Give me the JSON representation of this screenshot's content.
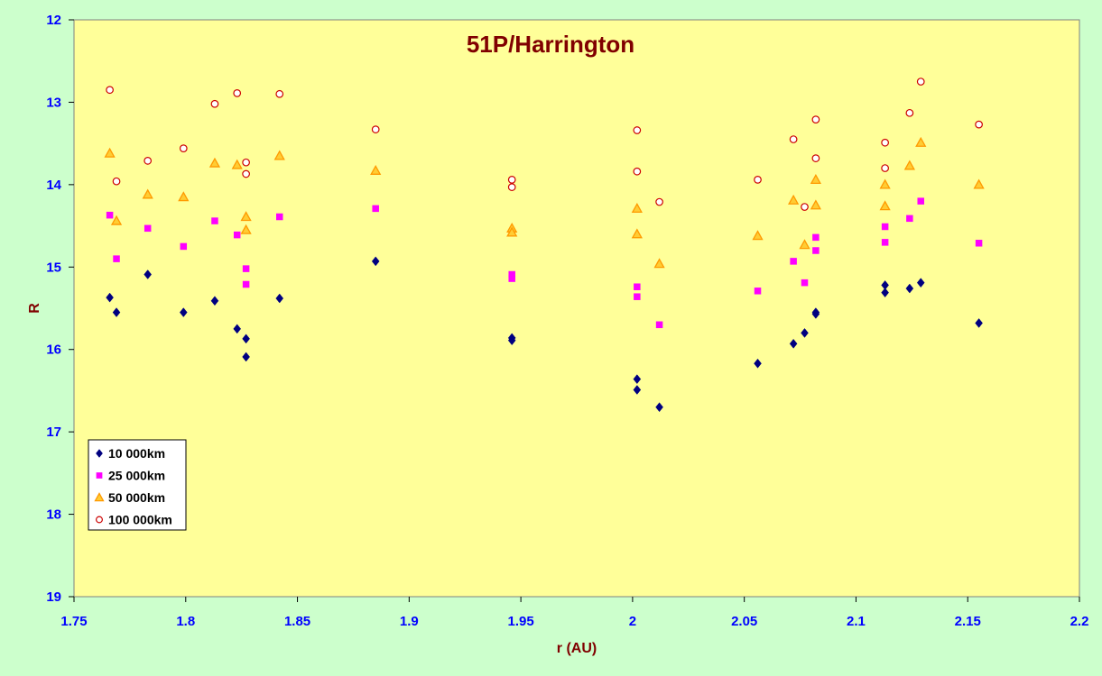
{
  "chart_data": {
    "type": "scatter",
    "title": "51P/Harrington",
    "xlabel": "r (AU)",
    "ylabel": "R",
    "xlim": [
      1.75,
      2.2
    ],
    "ylim": [
      12,
      19
    ],
    "y_reversed": true,
    "grid": false,
    "legend_position": "bottom-left",
    "x_ticks": [
      "1.75",
      "1.8",
      "1.85",
      "1.9",
      "1.95",
      "2",
      "2.05",
      "2.1",
      "2.15",
      "2.2"
    ],
    "y_ticks": [
      "12",
      "13",
      "14",
      "15",
      "16",
      "17",
      "18",
      "19"
    ],
    "colors": {
      "page_background": "#ccffcc",
      "plot_background": "#ffff99",
      "title": "#800000",
      "axis_labels": "#800000",
      "tick_labels": "#0000ff"
    },
    "series": [
      {
        "name": "10 000km",
        "marker": "diamond",
        "color": "#000080",
        "x": [
          1.766,
          1.769,
          1.783,
          1.799,
          1.813,
          1.823,
          1.827,
          1.827,
          1.842,
          1.885,
          1.946,
          1.946,
          2.002,
          2.002,
          2.012,
          2.056,
          2.072,
          2.077,
          2.082,
          2.082,
          2.113,
          2.113,
          2.124,
          2.129,
          2.155
        ],
        "y": [
          15.37,
          15.55,
          15.09,
          15.55,
          15.41,
          15.75,
          15.87,
          16.09,
          15.38,
          14.93,
          15.86,
          15.89,
          16.36,
          16.49,
          16.7,
          16.17,
          15.93,
          15.8,
          15.57,
          15.55,
          15.22,
          15.31,
          15.26,
          15.19,
          15.68
        ]
      },
      {
        "name": "25 000km",
        "marker": "square",
        "color": "#ff00ff",
        "x": [
          1.766,
          1.769,
          1.783,
          1.799,
          1.813,
          1.823,
          1.827,
          1.827,
          1.842,
          1.885,
          1.946,
          1.946,
          2.002,
          2.002,
          2.012,
          2.056,
          2.072,
          2.077,
          2.082,
          2.082,
          2.113,
          2.113,
          2.124,
          2.129,
          2.155
        ],
        "y": [
          14.37,
          14.9,
          14.53,
          14.75,
          14.44,
          14.61,
          15.02,
          15.21,
          14.39,
          14.29,
          15.09,
          15.14,
          15.24,
          15.36,
          15.7,
          15.29,
          14.93,
          15.19,
          14.64,
          14.8,
          14.51,
          14.7,
          14.41,
          14.2,
          14.71
        ]
      },
      {
        "name": "50 000km",
        "marker": "triangle",
        "color": "#ff9900",
        "x": [
          1.766,
          1.769,
          1.783,
          1.799,
          1.813,
          1.823,
          1.827,
          1.827,
          1.842,
          1.885,
          1.946,
          1.946,
          2.002,
          2.002,
          2.012,
          2.056,
          2.072,
          2.077,
          2.082,
          2.082,
          2.113,
          2.113,
          2.124,
          2.129,
          2.155
        ],
        "y": [
          13.62,
          14.44,
          14.12,
          14.15,
          13.74,
          13.76,
          14.39,
          14.55,
          13.65,
          13.83,
          14.53,
          14.58,
          14.29,
          14.6,
          14.96,
          14.62,
          14.19,
          14.73,
          13.94,
          14.25,
          14.0,
          14.26,
          13.77,
          13.49,
          14.0
        ]
      },
      {
        "name": "100 000km",
        "marker": "circle",
        "color": "#cc0000",
        "x": [
          1.766,
          1.769,
          1.783,
          1.799,
          1.813,
          1.823,
          1.827,
          1.827,
          1.842,
          1.885,
          1.946,
          1.946,
          2.002,
          2.002,
          2.012,
          2.056,
          2.072,
          2.077,
          2.082,
          2.082,
          2.113,
          2.113,
          2.124,
          2.129,
          2.155
        ],
        "y": [
          12.85,
          13.96,
          13.71,
          13.56,
          13.02,
          12.89,
          13.73,
          13.87,
          12.9,
          13.33,
          13.94,
          14.03,
          13.34,
          13.84,
          14.21,
          13.94,
          13.45,
          14.27,
          13.21,
          13.68,
          13.49,
          13.8,
          13.13,
          12.75,
          13.27
        ]
      }
    ]
  }
}
